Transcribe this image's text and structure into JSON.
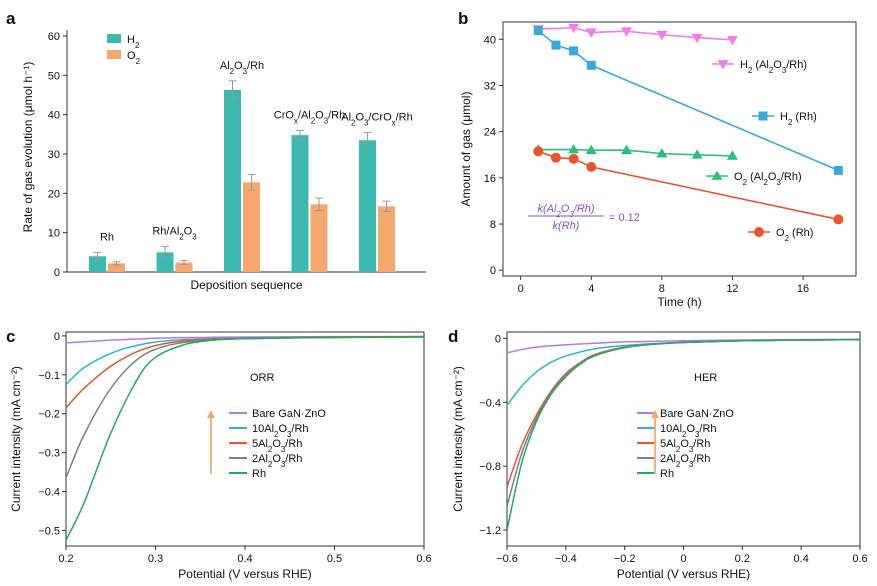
{
  "chart_data": [
    {
      "panel": "a",
      "type": "bar",
      "title": "",
      "xlabel": "Deposition sequence",
      "ylabel": "Rate of gas evolution (μmol h⁻¹)",
      "ylim": [
        0,
        60
      ],
      "yticks": [
        0,
        10,
        20,
        30,
        40,
        50,
        60
      ],
      "categories": [
        "Rh",
        "Rh/Al₂O₃",
        "Al₂O₃/Rh",
        "CrOₓ/Al₂O₃/Rh",
        "Al₂O₃/CrOₓ/Rh"
      ],
      "series": [
        {
          "name": "H₂",
          "color": "#3cbab0",
          "values": [
            4.0,
            5.0,
            46.3,
            34.8,
            33.5
          ],
          "errors": [
            1.0,
            1.5,
            2.3,
            1.2,
            2.0
          ]
        },
        {
          "name": "O₂",
          "color": "#f4a86e",
          "values": [
            2.2,
            2.4,
            22.8,
            17.2,
            16.7
          ],
          "errors": [
            0.4,
            0.5,
            2.0,
            1.6,
            1.3
          ]
        }
      ],
      "legend": "top-left"
    },
    {
      "panel": "b",
      "type": "line",
      "xlabel": "Time (h)",
      "ylabel": "Amount of gas (μmol)",
      "xlim": [
        -1,
        19
      ],
      "ylim": [
        -1,
        43
      ],
      "xticks": [
        0,
        4,
        8,
        12,
        16
      ],
      "yticks": [
        0,
        8,
        16,
        24,
        32,
        40
      ],
      "series": [
        {
          "name": "H₂ (Al₂O₃/Rh)",
          "color": "#f27ce8",
          "marker": "triangle-down",
          "x": [
            1,
            3,
            4,
            6,
            8,
            10,
            12
          ],
          "y": [
            41.8,
            42.0,
            41.2,
            41.4,
            40.8,
            40.3,
            39.9
          ]
        },
        {
          "name": "H₂ (Rh)",
          "color": "#3aa8d8",
          "marker": "square",
          "x": [
            1,
            2,
            3,
            4,
            18
          ],
          "y": [
            41.5,
            39.0,
            38.0,
            35.5,
            17.3
          ]
        },
        {
          "name": "O₂ (Al₂O₃/Rh)",
          "color": "#2bbf7a",
          "marker": "triangle-up",
          "x": [
            1,
            3,
            4,
            6,
            8,
            10,
            12
          ],
          "y": [
            20.9,
            20.9,
            20.8,
            20.8,
            20.2,
            20.0,
            19.8
          ]
        },
        {
          "name": "O₂ (Rh)",
          "color": "#e8542e",
          "marker": "circle",
          "x": [
            1,
            2,
            3,
            4,
            18
          ],
          "y": [
            20.6,
            19.5,
            19.3,
            17.9,
            8.8
          ]
        }
      ],
      "annotation": {
        "numerator": "k(Al₂O₃/Rh)",
        "denominator": "k(Rh)",
        "value": "= 0.12",
        "color": "#8a4fbf"
      }
    },
    {
      "panel": "c",
      "type": "line",
      "xlabel": "Potential (V versus RHE)",
      "ylabel": "Current intensity (mA cm⁻²)",
      "xlim": [
        0.2,
        0.6
      ],
      "ylim": [
        -0.54,
        0.01
      ],
      "xticks": [
        0.2,
        0.3,
        0.4,
        0.5,
        0.6
      ],
      "yticks": [
        0,
        -0.1,
        -0.2,
        -0.3,
        -0.4,
        -0.5
      ],
      "label": "ORR",
      "series": [
        {
          "name": "Bare GaN·ZnO",
          "color": "#b57ae0",
          "x": [
            0.2,
            0.25,
            0.3,
            0.35,
            0.4,
            0.5,
            0.6
          ],
          "y": [
            -0.018,
            -0.011,
            -0.006,
            -0.004,
            -0.003,
            -0.002,
            -0.002
          ]
        },
        {
          "name": "10Al₂O₃/Rh",
          "color": "#2fb4c8",
          "x": [
            0.2,
            0.22,
            0.25,
            0.28,
            0.31,
            0.35,
            0.4,
            0.5,
            0.6
          ],
          "y": [
            -0.125,
            -0.082,
            -0.045,
            -0.024,
            -0.013,
            -0.008,
            -0.005,
            -0.003,
            -0.002
          ]
        },
        {
          "name": "5Al₂O₃/Rh",
          "color": "#e8542e",
          "x": [
            0.2,
            0.22,
            0.25,
            0.28,
            0.31,
            0.35,
            0.4,
            0.5,
            0.6
          ],
          "y": [
            -0.185,
            -0.135,
            -0.078,
            -0.04,
            -0.02,
            -0.01,
            -0.006,
            -0.003,
            -0.002
          ]
        },
        {
          "name": "2Al₂O₃/Rh",
          "color": "#7f7f7f",
          "x": [
            0.2,
            0.22,
            0.25,
            0.28,
            0.31,
            0.35,
            0.4,
            0.5,
            0.6
          ],
          "y": [
            -0.365,
            -0.255,
            -0.135,
            -0.06,
            -0.027,
            -0.012,
            -0.007,
            -0.004,
            -0.003
          ]
        },
        {
          "name": "Rh",
          "color": "#24a866",
          "x": [
            0.2,
            0.22,
            0.25,
            0.28,
            0.3,
            0.33,
            0.36,
            0.4,
            0.5,
            0.6
          ],
          "y": [
            -0.525,
            -0.43,
            -0.25,
            -0.11,
            -0.055,
            -0.024,
            -0.012,
            -0.007,
            -0.004,
            -0.003
          ]
        }
      ]
    },
    {
      "panel": "d",
      "type": "line",
      "xlabel": "Potential (V versus RHE)",
      "ylabel": "Current intensity (mA cm⁻²)",
      "xlim": [
        -0.6,
        0.6
      ],
      "ylim": [
        -1.3,
        0.04
      ],
      "xticks": [
        -0.6,
        -0.4,
        -0.2,
        0,
        0.2,
        0.4,
        0.6
      ],
      "xtick_labels": [
        "−0.6",
        "−0.4",
        "−0.2",
        "0",
        "0.2",
        "0.4",
        "0.6"
      ],
      "yticks": [
        0,
        -0.4,
        -0.8,
        -1.2
      ],
      "ytick_labels": [
        "0",
        "−0.4",
        "−0.8",
        "−1.2"
      ],
      "label": "HER",
      "series": [
        {
          "name": "Bare GaN·ZnO",
          "color": "#b57ae0",
          "x": [
            -0.6,
            -0.55,
            -0.5,
            -0.4,
            -0.3,
            -0.2,
            0,
            0.2,
            0.4,
            0.6
          ],
          "y": [
            -0.09,
            -0.07,
            -0.055,
            -0.04,
            -0.03,
            -0.022,
            -0.015,
            -0.01,
            -0.008,
            -0.006
          ]
        },
        {
          "name": "10Al₂O₃/Rh",
          "color": "#2fb4c8",
          "x": [
            -0.6,
            -0.55,
            -0.5,
            -0.45,
            -0.4,
            -0.3,
            -0.2,
            -0.1,
            0,
            0.2,
            0.4,
            0.6
          ],
          "y": [
            -0.42,
            -0.3,
            -0.21,
            -0.15,
            -0.11,
            -0.065,
            -0.045,
            -0.033,
            -0.025,
            -0.015,
            -0.01,
            -0.008
          ]
        },
        {
          "name": "5Al₂O₃/Rh",
          "color": "#e8542e",
          "x": [
            -0.6,
            -0.55,
            -0.5,
            -0.45,
            -0.4,
            -0.35,
            -0.3,
            -0.2,
            -0.1,
            0,
            0.2,
            0.4,
            0.6
          ],
          "y": [
            -0.93,
            -0.67,
            -0.48,
            -0.33,
            -0.22,
            -0.15,
            -0.1,
            -0.055,
            -0.035,
            -0.025,
            -0.015,
            -0.01,
            -0.008
          ]
        },
        {
          "name": "2Al₂O₃/Rh",
          "color": "#7f7f7f",
          "x": [
            -0.6,
            -0.55,
            -0.5,
            -0.45,
            -0.4,
            -0.35,
            -0.3,
            -0.2,
            -0.1,
            0,
            0.2,
            0.4,
            0.6
          ],
          "y": [
            -1.05,
            -0.72,
            -0.5,
            -0.34,
            -0.23,
            -0.155,
            -0.105,
            -0.057,
            -0.036,
            -0.025,
            -0.015,
            -0.01,
            -0.008
          ]
        },
        {
          "name": "Rh",
          "color": "#24a866",
          "x": [
            -0.6,
            -0.55,
            -0.5,
            -0.45,
            -0.4,
            -0.35,
            -0.3,
            -0.2,
            -0.1,
            0,
            0.2,
            0.4,
            0.6
          ],
          "y": [
            -1.2,
            -0.78,
            -0.52,
            -0.35,
            -0.24,
            -0.16,
            -0.108,
            -0.058,
            -0.037,
            -0.026,
            -0.015,
            -0.01,
            -0.008
          ]
        }
      ]
    }
  ]
}
